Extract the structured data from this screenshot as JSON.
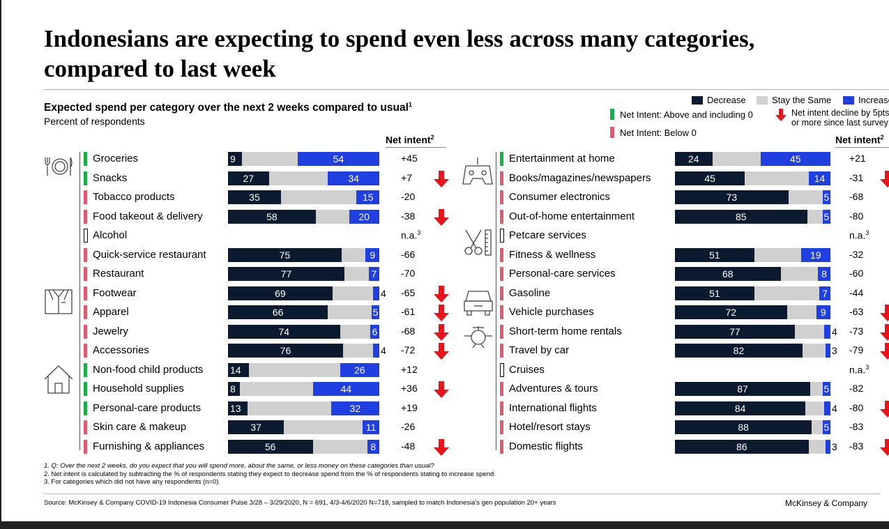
{
  "title": "Indonesians are expecting to spend even less across many categories, compared to last week",
  "subtitle": "Expected spend per category over the next 2 weeks compared to usual",
  "subtitle_sup": "1",
  "subtitle2": "Percent of respondents",
  "legend": {
    "decrease": "Decrease",
    "same": "Stay the Same",
    "increase": "Increase",
    "above": "Net Intent: Above and including 0",
    "below": "Net Intent: Below 0",
    "decline": "Net intent decline by 5pts",
    "decline2": "or more since last survey"
  },
  "colors": {
    "decrease": "#0b1a2e",
    "same": "#d0d0d0",
    "increase": "#1f3fe0",
    "positive": "#1aaf4b",
    "negative": "#e05a70",
    "arrow": "#e8141b"
  },
  "net_intent_header": "Net intent",
  "net_intent_sup": "2",
  "chart_data": {
    "type": "bar",
    "stacked": true,
    "title": "Expected spend per category over the next 2 weeks compared to usual",
    "unit": "Percent of respondents",
    "series_names": [
      "Decrease",
      "Stay the Same",
      "Increase"
    ],
    "left": [
      {
        "name": "Groceries",
        "dec": 9,
        "inc": 54,
        "net": "+45",
        "status": "pos",
        "arrow": false
      },
      {
        "name": "Snacks",
        "dec": 27,
        "inc": 34,
        "net": "+7",
        "status": "pos",
        "arrow": true
      },
      {
        "name": "Tobacco products",
        "dec": 35,
        "inc": 15,
        "net": "-20",
        "status": "neg",
        "arrow": false
      },
      {
        "name": "Food takeout & delivery",
        "dec": 58,
        "inc": 20,
        "net": "-38",
        "status": "neg",
        "arrow": true
      },
      {
        "name": "Alcohol",
        "dec": null,
        "inc": null,
        "net": "n.a.",
        "net_sup": "3",
        "status": "na",
        "arrow": false
      },
      {
        "name": "Quick-service restaurant",
        "dec": 75,
        "inc": 9,
        "net": "-66",
        "status": "neg",
        "arrow": false
      },
      {
        "name": "Restaurant",
        "dec": 77,
        "inc": 7,
        "net": "-70",
        "status": "neg",
        "arrow": false
      },
      {
        "name": "Footwear",
        "dec": 69,
        "inc": 4,
        "net": "-65",
        "status": "neg",
        "arrow": true
      },
      {
        "name": "Apparel",
        "dec": 66,
        "inc": 5,
        "net": "-61",
        "status": "neg",
        "arrow": true
      },
      {
        "name": "Jewelry",
        "dec": 74,
        "inc": 6,
        "net": "-68",
        "status": "neg",
        "arrow": true
      },
      {
        "name": "Accessories",
        "dec": 76,
        "inc": 4,
        "net": "-72",
        "status": "neg",
        "arrow": true
      },
      {
        "name": "Non-food child products",
        "dec": 14,
        "inc": 26,
        "net": "+12",
        "status": "pos",
        "arrow": false
      },
      {
        "name": "Household supplies",
        "dec": 8,
        "inc": 44,
        "net": "+36",
        "status": "pos",
        "arrow": true
      },
      {
        "name": "Personal-care products",
        "dec": 13,
        "inc": 32,
        "net": "+19",
        "status": "pos",
        "arrow": false
      },
      {
        "name": "Skin care & makeup",
        "dec": 37,
        "inc": 11,
        "net": "-26",
        "status": "neg",
        "arrow": false
      },
      {
        "name": "Furnishing & appliances",
        "dec": 56,
        "inc": 8,
        "net": "-48",
        "status": "neg",
        "arrow": true
      }
    ],
    "right": [
      {
        "name": "Entertainment at home",
        "dec": 24,
        "inc": 45,
        "net": "+21",
        "status": "pos",
        "arrow": false
      },
      {
        "name": "Books/magazines/newspapers",
        "dec": 45,
        "inc": 14,
        "net": "-31",
        "status": "neg",
        "arrow": true
      },
      {
        "name": "Consumer electronics",
        "dec": 73,
        "inc": 5,
        "net": "-68",
        "status": "neg",
        "arrow": false
      },
      {
        "name": "Out-of-home entertainment",
        "dec": 85,
        "inc": 5,
        "net": "-80",
        "status": "neg",
        "arrow": false
      },
      {
        "name": "Petcare services",
        "dec": null,
        "inc": null,
        "net": "n.a.",
        "net_sup": "3",
        "status": "na",
        "arrow": false
      },
      {
        "name": "Fitness & wellness",
        "dec": 51,
        "inc": 19,
        "net": "-32",
        "status": "neg",
        "arrow": false
      },
      {
        "name": "Personal-care services",
        "dec": 68,
        "inc": 8,
        "net": "-60",
        "status": "neg",
        "arrow": false
      },
      {
        "name": "Gasoline",
        "dec": 51,
        "inc": 7,
        "net": "-44",
        "status": "neg",
        "arrow": false
      },
      {
        "name": "Vehicle purchases",
        "dec": 72,
        "inc": 9,
        "net": "-63",
        "status": "neg",
        "arrow": true
      },
      {
        "name": "Short-term home rentals",
        "dec": 77,
        "inc": 4,
        "net": "-73",
        "status": "neg",
        "arrow": true
      },
      {
        "name": "Travel by car",
        "dec": 82,
        "inc": 3,
        "net": "-79",
        "status": "neg",
        "arrow": true
      },
      {
        "name": "Cruises",
        "dec": null,
        "inc": null,
        "net": "n.a.",
        "net_sup": "3",
        "status": "na",
        "arrow": false
      },
      {
        "name": "Adventures & tours",
        "dec": 87,
        "inc": 5,
        "net": "-82",
        "status": "neg",
        "arrow": false
      },
      {
        "name": "International flights",
        "dec": 84,
        "inc": 4,
        "net": "-80",
        "status": "neg",
        "arrow": true
      },
      {
        "name": "Hotel/resort stays",
        "dec": 88,
        "inc": 5,
        "net": "-83",
        "status": "neg",
        "arrow": false
      },
      {
        "name": "Domestic flights",
        "dec": 86,
        "inc": 3,
        "net": "-83",
        "status": "neg",
        "arrow": true
      }
    ]
  },
  "notes": [
    "1.  Q: Over the next 2 weeks, do you expect that you will spend more, about the same, or less money on these categories than usual?",
    "2.  Net intent is calculated by subtracting the % of respondents stating they expect to decrease spend from the % of respondents stating to increase spend",
    "3.  For categories which did not have any respondents (n=0)"
  ],
  "source": "Source: McKinsey & Company COVID-19 Indonesia Consumer Pulse 3/28 – 3/29/2020, N = 691, 4/3-4/6/2020 N=718, sampled to match Indonesia's gen population 20+ years",
  "brand": "McKinsey & Company",
  "icons": [
    "dining-icon",
    "shirt-icon",
    "house-icon",
    "gamepad-icon",
    "scissors-icon",
    "car-icon",
    "plane-icon"
  ]
}
